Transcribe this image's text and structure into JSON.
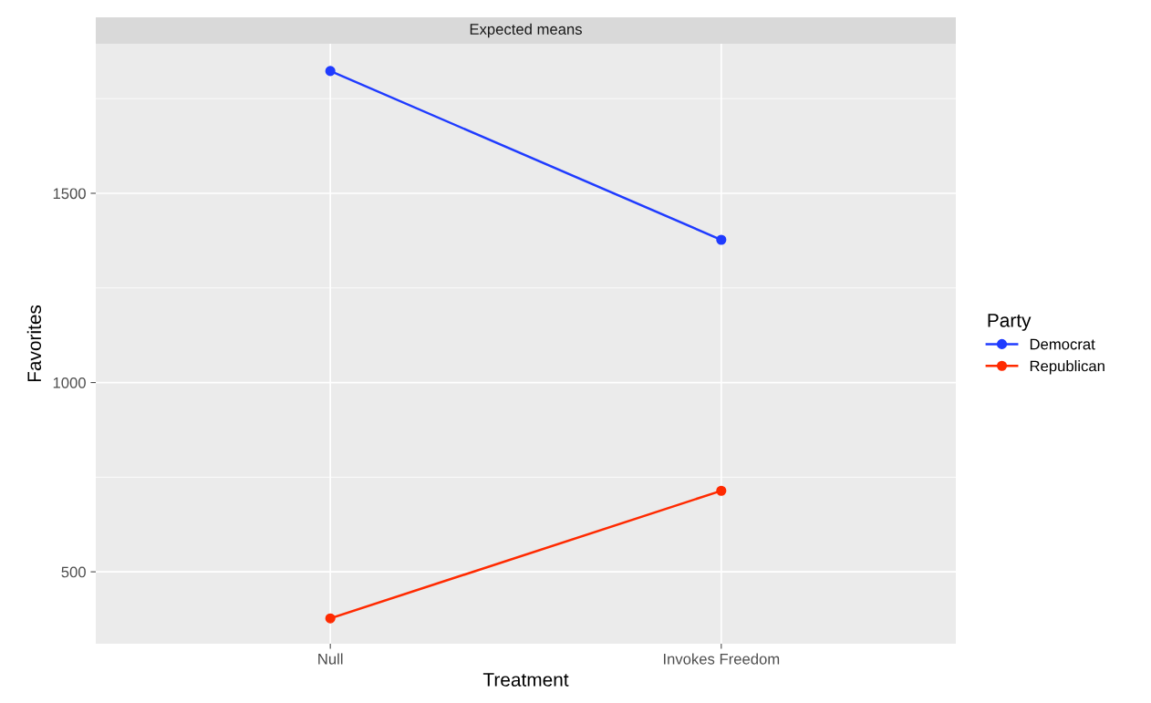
{
  "chart_data": {
    "type": "line",
    "title": "Expected means",
    "xlabel": "Treatment",
    "ylabel": "Favorites",
    "legend_title": "Party",
    "categories": [
      "Null",
      "Invokes Freedom"
    ],
    "series": [
      {
        "name": "Democrat",
        "color": "#1f3bff",
        "values": [
          1823,
          1377
        ]
      },
      {
        "name": "Republican",
        "color": "#ff2a00",
        "values": [
          377,
          714
        ]
      }
    ],
    "ylim": [
      310,
      1895
    ],
    "yticks": [
      500,
      1000,
      1500
    ],
    "grid": true,
    "legend": "right",
    "marker": "circle",
    "line_style": "solid"
  }
}
